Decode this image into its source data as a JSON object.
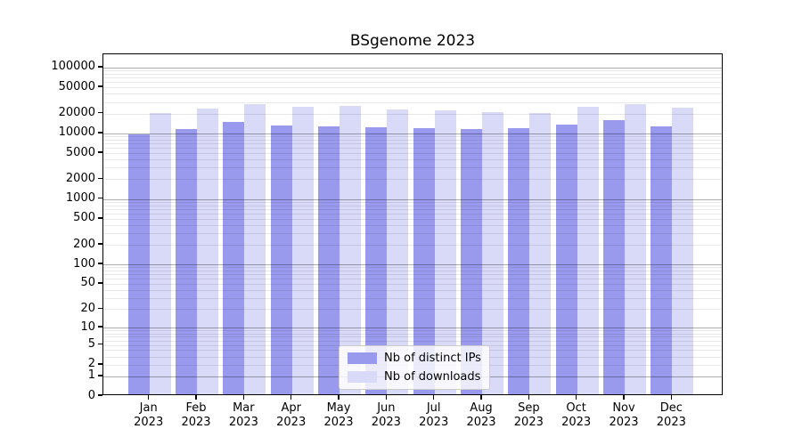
{
  "title": "BSgenome 2023",
  "legend": {
    "items": [
      {
        "label": "Nb of distinct IPs",
        "color": "#9999ee"
      },
      {
        "label": "Nb of downloads",
        "color": "#d9d9f8"
      }
    ]
  },
  "chart_data": {
    "type": "bar",
    "title": "BSgenome 2023",
    "categories": [
      "Jan 2023",
      "Feb 2023",
      "Mar 2023",
      "Apr 2023",
      "May 2023",
      "Jun 2023",
      "Jul 2023",
      "Aug 2023",
      "Sep 2023",
      "Oct 2023",
      "Nov 2023",
      "Dec 2023"
    ],
    "series": [
      {
        "name": "Nb of distinct IPs",
        "color": "#9999ee",
        "values": [
          9000,
          11000,
          13900,
          12500,
          11900,
          11500,
          11300,
          11000,
          11100,
          12800,
          14900,
          12100
        ]
      },
      {
        "name": "Nb of downloads",
        "color": "#d9d9f8",
        "values": [
          19300,
          22200,
          26500,
          23800,
          24500,
          21700,
          21000,
          19700,
          19400,
          23800,
          26400,
          23300
        ]
      }
    ],
    "xlabel": "",
    "ylabel": "",
    "yscale": "log1p",
    "y_ticks": [
      100000,
      50000,
      20000,
      10000,
      5000,
      2000,
      1000,
      500,
      200,
      100,
      50,
      20,
      10,
      5,
      2,
      1,
      0
    ],
    "ylim": [
      0,
      157000
    ],
    "grid": true,
    "grid_major_at_powers_of_ten": true,
    "legend_position": "lower center"
  }
}
